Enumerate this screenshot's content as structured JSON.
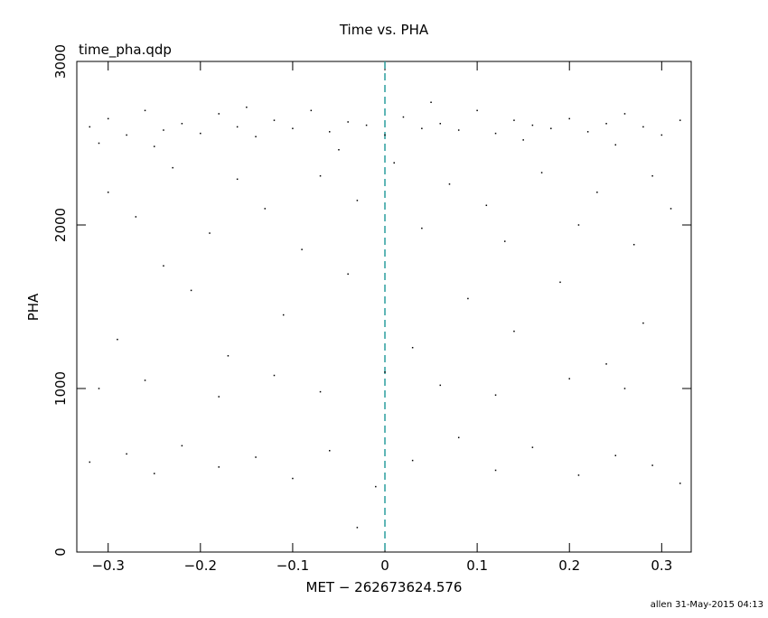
{
  "chart_data": {
    "type": "scatter",
    "title": "Time vs. PHA",
    "subtitle": "time_pha.qdp",
    "xlabel": "MET − 262673624.576",
    "ylabel": "PHA",
    "footer": "allen 31-May-2015 04:13",
    "color": "#000000",
    "vline": {
      "x": 0,
      "color": "#2a9d9d"
    },
    "xlim": [
      -0.334,
      0.332
    ],
    "ylim": [
      0,
      3000
    ],
    "xticks": [
      {
        "value": -0.3,
        "label": "−0.3"
      },
      {
        "value": -0.2,
        "label": "−0.2"
      },
      {
        "value": -0.1,
        "label": "−0.1"
      },
      0,
      0.1,
      0.2,
      0.3
    ],
    "yticks": [
      0,
      1000,
      2000,
      3000
    ],
    "x": [
      -0.32,
      -0.3,
      -0.28,
      -0.26,
      -0.24,
      -0.22,
      -0.2,
      -0.18,
      -0.16,
      -0.14,
      -0.12,
      -0.1,
      -0.08,
      -0.06,
      -0.04,
      -0.02,
      0.0,
      0.02,
      0.04,
      0.06,
      0.08,
      0.1,
      0.12,
      0.14,
      0.16,
      0.18,
      0.2,
      0.22,
      0.24,
      0.26,
      0.28,
      0.3,
      0.32,
      -0.31,
      -0.25,
      -0.15,
      -0.05,
      0.05,
      0.15,
      0.25,
      -0.3,
      -0.27,
      -0.23,
      -0.19,
      -0.16,
      -0.13,
      -0.09,
      -0.07,
      -0.03,
      0.01,
      0.04,
      0.07,
      0.11,
      0.13,
      0.17,
      0.21,
      0.23,
      0.27,
      0.29,
      0.31,
      -0.29,
      -0.21,
      -0.17,
      -0.11,
      -0.04,
      0.03,
      0.09,
      0.14,
      0.19,
      0.24,
      0.28,
      -0.24,
      -0.31,
      -0.26,
      -0.18,
      -0.12,
      -0.07,
      0.0,
      0.06,
      0.12,
      0.2,
      0.26,
      -0.32,
      -0.28,
      -0.25,
      -0.22,
      -0.18,
      -0.14,
      -0.1,
      -0.06,
      -0.01,
      0.03,
      0.08,
      0.12,
      0.16,
      0.21,
      0.25,
      0.29,
      0.32,
      -0.03
    ],
    "y": [
      2600,
      2650,
      2550,
      2700,
      2580,
      2620,
      2560,
      2680,
      2600,
      2540,
      2640,
      2590,
      2700,
      2570,
      2630,
      2610,
      2550,
      2660,
      2590,
      2620,
      2580,
      2700,
      2560,
      2640,
      2610,
      2590,
      2650,
      2570,
      2620,
      2680,
      2600,
      2550,
      2640,
      2500,
      2480,
      2720,
      2460,
      2750,
      2520,
      2490,
      2200,
      2050,
      2350,
      1950,
      2280,
      2100,
      1850,
      2300,
      2150,
      2380,
      1980,
      2250,
      2120,
      1900,
      2320,
      2000,
      2200,
      1880,
      2300,
      2100,
      1300,
      1600,
      1200,
      1450,
      1700,
      1250,
      1550,
      1350,
      1650,
      1150,
      1400,
      1750,
      1000,
      1050,
      950,
      1080,
      980,
      1100,
      1020,
      960,
      1060,
      1000,
      550,
      600,
      480,
      650,
      520,
      580,
      450,
      620,
      400,
      560,
      700,
      500,
      640,
      470,
      590,
      530,
      420,
      150
    ]
  }
}
